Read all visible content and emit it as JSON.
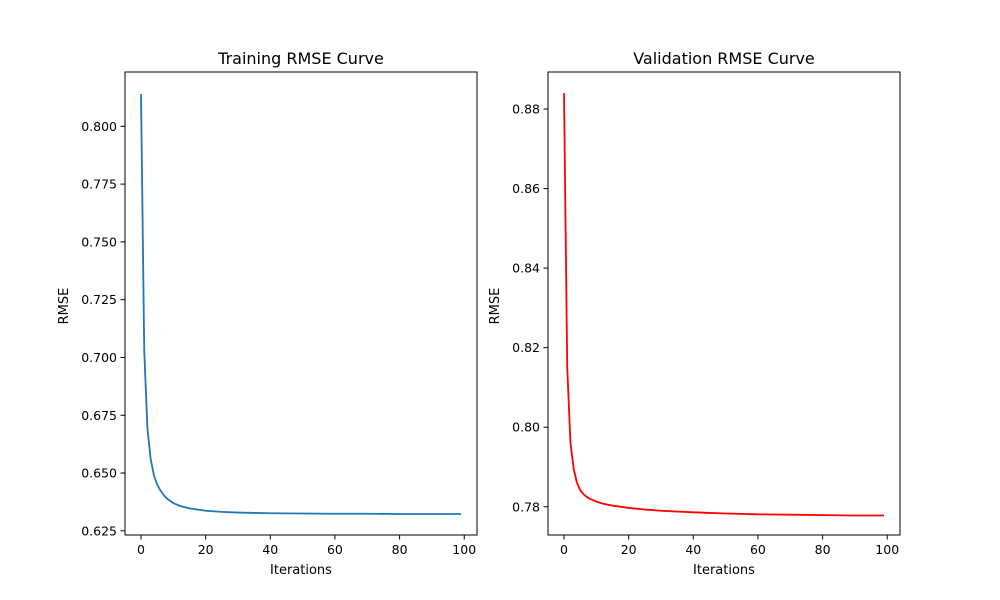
{
  "chart_data": [
    {
      "type": "line",
      "title": "Training RMSE Curve",
      "xlabel": "Iterations",
      "ylabel": "RMSE",
      "color": "#1f77b4",
      "xlim": [
        -4.95,
        103.95
      ],
      "ylim": [
        0.6232,
        0.8235
      ],
      "xticks": [
        0,
        20,
        40,
        60,
        80,
        100
      ],
      "yticks": [
        0.625,
        0.65,
        0.675,
        0.7,
        0.725,
        0.75,
        0.775,
        0.8
      ],
      "ytick_labels": [
        "0.625",
        "0.650",
        "0.675",
        "0.700",
        "0.725",
        "0.750",
        "0.775",
        "0.800"
      ],
      "x": [
        0,
        1,
        2,
        3,
        4,
        5,
        6,
        7,
        8,
        10,
        12,
        15,
        20,
        25,
        30,
        40,
        50,
        60,
        70,
        80,
        90,
        99
      ],
      "y": [
        0.814,
        0.703,
        0.669,
        0.656,
        0.649,
        0.645,
        0.6425,
        0.6405,
        0.639,
        0.637,
        0.6358,
        0.6347,
        0.6337,
        0.6332,
        0.6329,
        0.6326,
        0.6325,
        0.6324,
        0.6324,
        0.6323,
        0.6323,
        0.6323
      ]
    },
    {
      "type": "line",
      "title": "Validation RMSE Curve",
      "xlabel": "Iterations",
      "ylabel": "RMSE",
      "color": "#ff0000",
      "xlim": [
        -4.95,
        103.95
      ],
      "ylim": [
        0.7729,
        0.8893
      ],
      "xticks": [
        0,
        20,
        40,
        60,
        80,
        100
      ],
      "yticks": [
        0.78,
        0.8,
        0.82,
        0.84,
        0.86,
        0.88
      ],
      "ytick_labels": [
        "0.78",
        "0.80",
        "0.82",
        "0.84",
        "0.86",
        "0.88"
      ],
      "x": [
        0,
        1,
        2,
        3,
        4,
        5,
        6,
        7,
        8,
        10,
        12,
        15,
        20,
        25,
        30,
        40,
        50,
        60,
        70,
        80,
        90,
        99
      ],
      "y": [
        0.884,
        0.815,
        0.796,
        0.7895,
        0.786,
        0.7842,
        0.7832,
        0.7825,
        0.782,
        0.7813,
        0.7808,
        0.7803,
        0.7797,
        0.7793,
        0.779,
        0.7786,
        0.7783,
        0.7781,
        0.778,
        0.7779,
        0.7778,
        0.7778
      ]
    }
  ]
}
